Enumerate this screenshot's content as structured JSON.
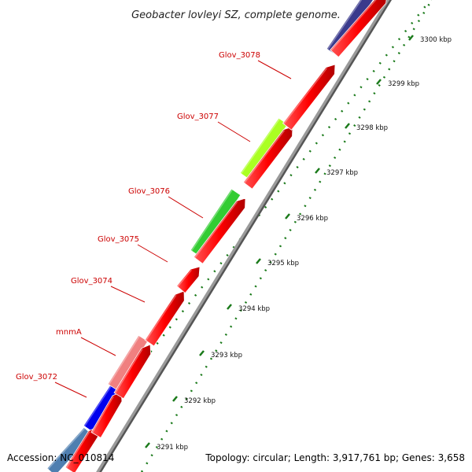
{
  "title": "Geobacter lovleyi SZ, complete genome.",
  "footer": {
    "accession": "Accession: NC_010814",
    "topology": "Topology: circular; Length: 3,917,761 bp; Genes: 3,658"
  },
  "kbp_ticks": [
    {
      "label": "3291 kbp"
    },
    {
      "label": "3292 kbp"
    },
    {
      "label": "3293 kbp"
    },
    {
      "label": "3294 kbp"
    },
    {
      "label": "3295 kbp"
    },
    {
      "label": "3296 kbp"
    },
    {
      "label": "3297 kbp"
    },
    {
      "label": "3298 kbp"
    },
    {
      "label": "3299 kbp"
    },
    {
      "label": "3300 kbp"
    }
  ],
  "gene_labels": [
    {
      "name": "Glov_3072"
    },
    {
      "name": "mnmA"
    },
    {
      "name": "Glov_3074"
    },
    {
      "name": "Glov_3075"
    },
    {
      "name": "Glov_3076"
    },
    {
      "name": "Glov_3077"
    },
    {
      "name": "Glov_3078"
    }
  ],
  "colors": {
    "cds_forward": "#ff0000",
    "backbone": "#9a9a9a",
    "label_red": "#cc0000",
    "tick_green": "#1a7a1a",
    "cog_blue": "#0000ee",
    "cog_purple": "#3a3a8c",
    "cog_pink": "#f08080",
    "cog_green": "#33cc33",
    "cog_lime": "#aaff22",
    "cog_steel": "#4f7fb0"
  }
}
